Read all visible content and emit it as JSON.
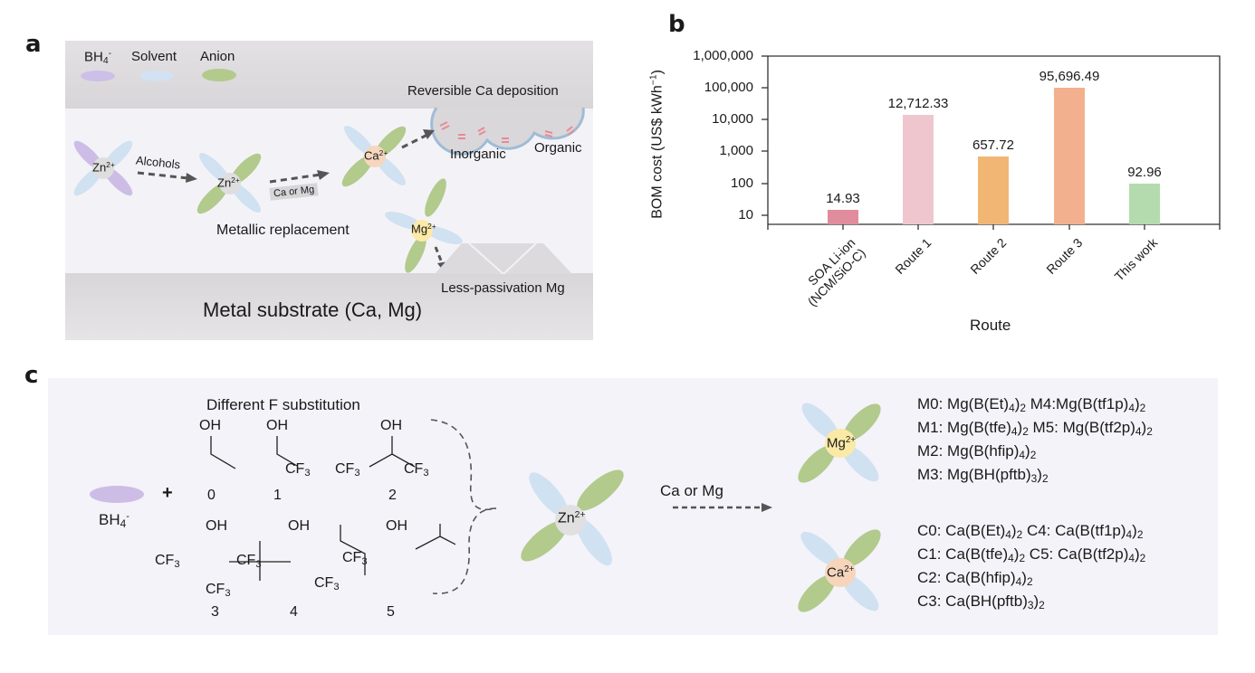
{
  "panels": {
    "a": {
      "letter": "a",
      "legend": [
        {
          "label": "BH4",
          "sup": "-",
          "sub": "4",
          "base": "BH",
          "color": "#c9b8e6"
        },
        {
          "label": "Solvent",
          "color": "#cfe0f0"
        },
        {
          "label": "Anion",
          "color": "#b3cc8e"
        }
      ],
      "reversible_label": "Reversible Ca deposition",
      "inorganic_label": "Inorganic",
      "organic_label": "Organic",
      "alcohols_label": "Alcohols",
      "ca_or_mg_label": "Ca or Mg",
      "metallic_replacement_label": "Metallic replacement",
      "less_passivation_label": "Less-passivation Mg",
      "substrate_label": "Metal substrate (Ca, Mg)",
      "ions": {
        "zn": "Zn",
        "zn_charge": "2+",
        "ca": "Ca",
        "ca_charge": "2+",
        "mg": "Mg",
        "mg_charge": "2+"
      }
    },
    "b": {
      "letter": "b",
      "ylabel": "BOM cost (US$ kWh",
      "ylabel_sup": "−1",
      "ylabel_close": ")",
      "xlabel": "Route",
      "yticks": [
        "1,000,000",
        "100,000",
        "10,000",
        "1,000",
        "100",
        "10"
      ],
      "categories": [
        "SOA Li-ion (NCM/SiO-C)",
        "Route 1",
        "Route 2",
        "Route 3",
        "This work"
      ],
      "cat_line1": [
        "SOA Li-ion",
        "Route 1",
        "Route 2",
        "Route 3",
        "This work"
      ],
      "cat_line2": [
        "(NCM/SiO-C)",
        "",
        "",
        "",
        ""
      ],
      "value_labels": [
        "14.93",
        "12,712.33",
        "657.72",
        "95,696.49",
        "92.96"
      ],
      "bar_colors": [
        "#e08c9c",
        "#efc6cd",
        "#f2b674",
        "#f2b08e",
        "#b3dbad"
      ]
    },
    "c": {
      "letter": "c",
      "title": "Different F substitution",
      "bh4": {
        "base": "BH",
        "sub": "4",
        "sup": "-"
      },
      "plus": "+",
      "alcohol_numbers": [
        "0",
        "1",
        "2",
        "3",
        "4",
        "5"
      ],
      "oh": "OH",
      "cf3": {
        "base": "CF",
        "sub": "3"
      },
      "arrow_label": "Ca or Mg",
      "zn_ion": {
        "base": "Zn",
        "sup": "2+"
      },
      "mg_ion": {
        "base": "Mg",
        "sup": "2+"
      },
      "ca_ion": {
        "base": "Ca",
        "sup": "2+"
      },
      "mg_formulas": [
        "M0: Mg(B(Et)4)2 M4:Mg(B(tf1p)4)2",
        "M1: Mg(B(tfe)4)2 M5: Mg(B(tf2p)4)2",
        "M2: Mg(B(hfip)4)2",
        "M3: Mg(BH(pftb)3)2"
      ],
      "ca_formulas": [
        "C0: Ca(B(Et)4)2 C4: Ca(B(tf1p)4)2",
        "C1: Ca(B(tfe)4)2 C5: Ca(B(tf2p)4)2",
        "C2: Ca(B(hfip)4)2",
        "C3: Ca(BH(pftb)3)2"
      ]
    }
  },
  "chart_data": {
    "type": "bar",
    "title": "",
    "categories": [
      "SOA Li-ion (NCM/SiO-C)",
      "Route 1",
      "Route 2",
      "Route 3",
      "This work"
    ],
    "values": [
      14.93,
      12712.33,
      657.72,
      95696.49,
      92.96
    ],
    "xlabel": "Route",
    "ylabel": "BOM cost (US$ kWh⁻¹)",
    "yscale": "log",
    "ylim": [
      5,
      1000000
    ],
    "yticks": [
      10,
      100,
      1000,
      10000,
      100000,
      1000000
    ],
    "data_labels": [
      "14.93",
      "12,712.33",
      "657.72",
      "95,696.49",
      "92.96"
    ],
    "colors": [
      "#e08c9c",
      "#efc6cd",
      "#f2b674",
      "#f2b08e",
      "#b3dbad"
    ],
    "grid": false,
    "legend": null
  }
}
